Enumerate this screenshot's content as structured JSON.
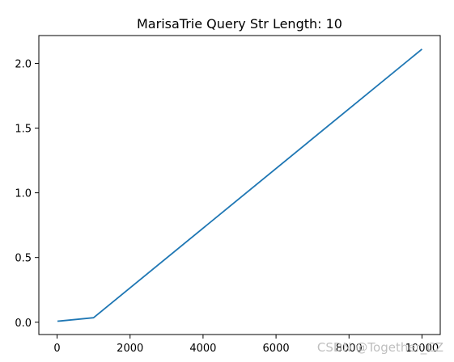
{
  "chart_data": {
    "type": "line",
    "title": "MarisaTrie Query Str Length: 10",
    "xlabel": "",
    "ylabel": "",
    "xlim": [
      -500,
      10500
    ],
    "ylim": [
      -0.095,
      2.215
    ],
    "x_ticks": [
      0,
      2000,
      4000,
      6000,
      8000,
      10000
    ],
    "x_tick_labels": [
      "0",
      "2000",
      "4000",
      "6000",
      "8000",
      "10000"
    ],
    "y_ticks": [
      0.0,
      0.5,
      1.0,
      1.5,
      2.0
    ],
    "y_tick_labels": [
      "0.0",
      "0.5",
      "1.0",
      "1.5",
      "2.0"
    ],
    "grid": false,
    "series": [
      {
        "color": "#1f77b4",
        "x": [
          10,
          100,
          1000,
          10000
        ],
        "y": [
          0.008,
          0.01,
          0.035,
          2.11
        ]
      }
    ]
  },
  "watermark": "CSDN @Together_CZ"
}
